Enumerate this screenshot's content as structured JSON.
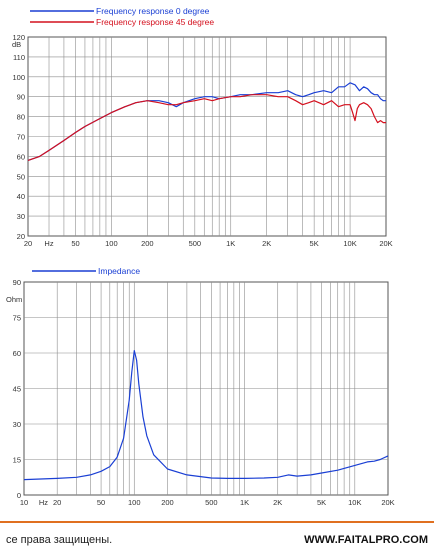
{
  "colors": {
    "blue": "#1a3fd4",
    "red": "#d4101e",
    "grid": "#8e8e8e",
    "footer_rule": "#e07020"
  },
  "footer": {
    "rights": "се права защищены.",
    "site": "WWW.FAITALPRO.COM"
  },
  "chart_data": [
    {
      "type": "line",
      "y_unit": "dB",
      "x_scale": "log",
      "xlim": [
        20,
        20000
      ],
      "ylim": [
        20,
        120
      ],
      "y_ticks": [
        20,
        30,
        40,
        50,
        60,
        70,
        80,
        90,
        100,
        110,
        120
      ],
      "x_ticks": [
        {
          "v": 20,
          "t": "20"
        },
        {
          "v": 30,
          "t": "Hz"
        },
        {
          "v": 50,
          "t": "50"
        },
        {
          "v": 100,
          "t": "100"
        },
        {
          "v": 200,
          "t": "200"
        },
        {
          "v": 500,
          "t": "500"
        },
        {
          "v": 1000,
          "t": "1K"
        },
        {
          "v": 2000,
          "t": "2K"
        },
        {
          "v": 5000,
          "t": "5K"
        },
        {
          "v": 10000,
          "t": "10K"
        },
        {
          "v": 20000,
          "t": "20K"
        }
      ],
      "series": [
        {
          "name": "Frequency response 0 degree",
          "color": "#1a3fd4",
          "points": [
            [
              20,
              58
            ],
            [
              25,
              60
            ],
            [
              30,
              63
            ],
            [
              40,
              68
            ],
            [
              50,
              72
            ],
            [
              60,
              75
            ],
            [
              80,
              79
            ],
            [
              100,
              82
            ],
            [
              130,
              85
            ],
            [
              160,
              87
            ],
            [
              200,
              88
            ],
            [
              250,
              88
            ],
            [
              300,
              87
            ],
            [
              350,
              85
            ],
            [
              400,
              87
            ],
            [
              500,
              89
            ],
            [
              600,
              90
            ],
            [
              700,
              90
            ],
            [
              800,
              89
            ],
            [
              1000,
              90
            ],
            [
              1200,
              91
            ],
            [
              1500,
              91
            ],
            [
              2000,
              92
            ],
            [
              2500,
              92
            ],
            [
              3000,
              93
            ],
            [
              3500,
              91
            ],
            [
              4000,
              90
            ],
            [
              4500,
              91
            ],
            [
              5000,
              92
            ],
            [
              6000,
              93
            ],
            [
              7000,
              92
            ],
            [
              8000,
              95
            ],
            [
              9000,
              95
            ],
            [
              10000,
              97
            ],
            [
              11000,
              96
            ],
            [
              12000,
              93
            ],
            [
              13000,
              95
            ],
            [
              14000,
              94
            ],
            [
              15000,
              92
            ],
            [
              16000,
              91
            ],
            [
              17000,
              91
            ],
            [
              18000,
              89
            ],
            [
              19000,
              88
            ],
            [
              20000,
              88
            ]
          ]
        },
        {
          "name": "Frequency response 45 degree",
          "color": "#d4101e",
          "points": [
            [
              20,
              58
            ],
            [
              25,
              60
            ],
            [
              30,
              63
            ],
            [
              40,
              68
            ],
            [
              50,
              72
            ],
            [
              60,
              75
            ],
            [
              80,
              79
            ],
            [
              100,
              82
            ],
            [
              130,
              85
            ],
            [
              160,
              87
            ],
            [
              200,
              88
            ],
            [
              250,
              87
            ],
            [
              300,
              86
            ],
            [
              350,
              86
            ],
            [
              400,
              87
            ],
            [
              500,
              88
            ],
            [
              600,
              89
            ],
            [
              700,
              88
            ],
            [
              800,
              89
            ],
            [
              1000,
              90
            ],
            [
              1200,
              90
            ],
            [
              1500,
              91
            ],
            [
              2000,
              91
            ],
            [
              2500,
              90
            ],
            [
              3000,
              90
            ],
            [
              3500,
              88
            ],
            [
              4000,
              86
            ],
            [
              4500,
              87
            ],
            [
              5000,
              88
            ],
            [
              6000,
              86
            ],
            [
              7000,
              88
            ],
            [
              8000,
              85
            ],
            [
              9000,
              86
            ],
            [
              10000,
              86
            ],
            [
              10500,
              82
            ],
            [
              11000,
              78
            ],
            [
              11500,
              84
            ],
            [
              12000,
              86
            ],
            [
              13000,
              87
            ],
            [
              14000,
              86
            ],
            [
              15000,
              84
            ],
            [
              16000,
              80
            ],
            [
              17000,
              77
            ],
            [
              18000,
              78
            ],
            [
              19000,
              77
            ],
            [
              20000,
              77
            ]
          ]
        }
      ]
    },
    {
      "type": "line",
      "y_unit": "Ohm",
      "x_scale": "log",
      "xlim": [
        10,
        20000
      ],
      "ylim": [
        0,
        90
      ],
      "y_ticks": [
        0,
        15,
        30,
        45,
        60,
        75,
        90
      ],
      "x_ticks": [
        {
          "v": 10,
          "t": "10"
        },
        {
          "v": 15,
          "t": "Hz"
        },
        {
          "v": 20,
          "t": "20"
        },
        {
          "v": 50,
          "t": "50"
        },
        {
          "v": 100,
          "t": "100"
        },
        {
          "v": 200,
          "t": "200"
        },
        {
          "v": 500,
          "t": "500"
        },
        {
          "v": 1000,
          "t": "1K"
        },
        {
          "v": 2000,
          "t": "2K"
        },
        {
          "v": 5000,
          "t": "5K"
        },
        {
          "v": 10000,
          "t": "10K"
        },
        {
          "v": 20000,
          "t": "20K"
        }
      ],
      "series": [
        {
          "name": "Impedance",
          "color": "#1a3fd4",
          "points": [
            [
              10,
              6.5
            ],
            [
              20,
              7
            ],
            [
              30,
              7.5
            ],
            [
              40,
              8.5
            ],
            [
              50,
              10
            ],
            [
              60,
              12
            ],
            [
              70,
              16
            ],
            [
              80,
              24
            ],
            [
              90,
              40
            ],
            [
              95,
              52
            ],
            [
              100,
              61
            ],
            [
              105,
              57
            ],
            [
              110,
              47
            ],
            [
              120,
              33
            ],
            [
              130,
              25
            ],
            [
              150,
              17
            ],
            [
              200,
              11
            ],
            [
              300,
              8.5
            ],
            [
              500,
              7.2
            ],
            [
              700,
              7
            ],
            [
              1000,
              7
            ],
            [
              1500,
              7.2
            ],
            [
              2000,
              7.5
            ],
            [
              2500,
              8.5
            ],
            [
              3000,
              8
            ],
            [
              4000,
              8.5
            ],
            [
              5000,
              9.3
            ],
            [
              7000,
              10.5
            ],
            [
              10000,
              12.5
            ],
            [
              13000,
              14
            ],
            [
              15000,
              14.3
            ],
            [
              17000,
              15
            ],
            [
              20000,
              16.5
            ]
          ]
        }
      ]
    }
  ]
}
